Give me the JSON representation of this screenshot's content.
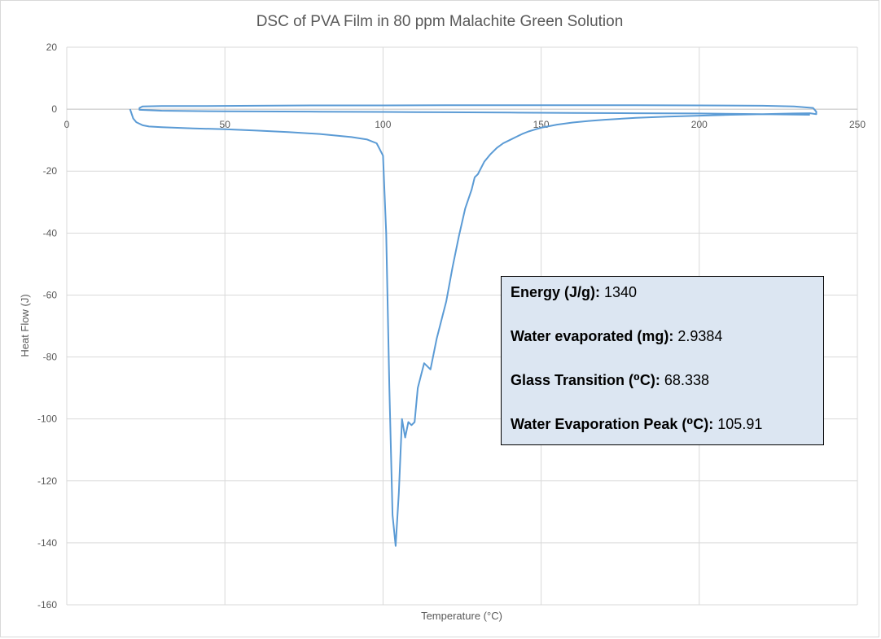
{
  "chart_data": {
    "type": "line",
    "title": "DSC of PVA Film in 80 ppm Malachite Green Solution",
    "xlabel": "Temperature (°C)",
    "ylabel": "Heat Flow (J)",
    "xlim": [
      0,
      250
    ],
    "ylim": [
      -160,
      20
    ],
    "x_ticks": [
      "0",
      "50",
      "100",
      "150",
      "200",
      "250"
    ],
    "y_ticks": [
      "20",
      "0",
      "-20",
      "-40",
      "-60",
      "-80",
      "-100",
      "-120",
      "-140",
      "-160"
    ],
    "grid": true,
    "legend": false,
    "line_color": "#5b9bd5",
    "series": [
      {
        "x": [
          20,
          21,
          22,
          24,
          26,
          30,
          40,
          50,
          60,
          70,
          80,
          90,
          95,
          98,
          100,
          101,
          102,
          103,
          104,
          105,
          106,
          107,
          108,
          109,
          110,
          111,
          112,
          113,
          115,
          117,
          119,
          120,
          122,
          124,
          126,
          128,
          129,
          130,
          132,
          134,
          136,
          138,
          140,
          142,
          144,
          146,
          148,
          150,
          155,
          160,
          165,
          170,
          180,
          190,
          200,
          210,
          220,
          230,
          235,
          237,
          237,
          236,
          230,
          220,
          200,
          180,
          160,
          140,
          120,
          100,
          80,
          60,
          40,
          30,
          24,
          23,
          23,
          30,
          50,
          80,
          100,
          120,
          140,
          160,
          180,
          200,
          220,
          235
        ],
        "y": [
          0,
          -3,
          -4.2,
          -5.2,
          -5.6,
          -5.8,
          -6.2,
          -6.5,
          -6.9,
          -7.4,
          -8,
          -9,
          -9.8,
          -11,
          -15,
          -40,
          -90,
          -131,
          -141,
          -124,
          -100,
          -106,
          -101,
          -102,
          -101,
          -90,
          -86,
          -82,
          -84,
          -74,
          -66,
          -62,
          -51,
          -41,
          -32,
          -26,
          -22,
          -21,
          -17,
          -14.5,
          -12.5,
          -11,
          -10,
          -9,
          -8,
          -7.2,
          -6.6,
          -6,
          -5,
          -4.3,
          -3.8,
          -3.4,
          -2.8,
          -2.4,
          -2.1,
          -1.8,
          -1.6,
          -1.4,
          -1.3,
          -1.6,
          -0.8,
          0.4,
          0.9,
          1.1,
          1.2,
          1.3,
          1.3,
          1.3,
          1.3,
          1.2,
          1.2,
          1.1,
          1,
          1,
          0.9,
          0.4,
          -0.2,
          -0.5,
          -0.7,
          -0.8,
          -0.9,
          -1,
          -1.1,
          -1.2,
          -1.3,
          -1.4,
          -1.6,
          -1.8
        ]
      }
    ]
  },
  "info_box": {
    "lines": [
      {
        "label": "Energy (J/g):",
        "value": " 1340"
      },
      {
        "label": "Water evaporated (mg):",
        "value": " 2.9384"
      },
      {
        "label": "Glass Transition (⁰C):",
        "value": " 68.338"
      },
      {
        "label": "Water Evaporation Peak (⁰C):",
        "value": " 105.91"
      }
    ]
  }
}
